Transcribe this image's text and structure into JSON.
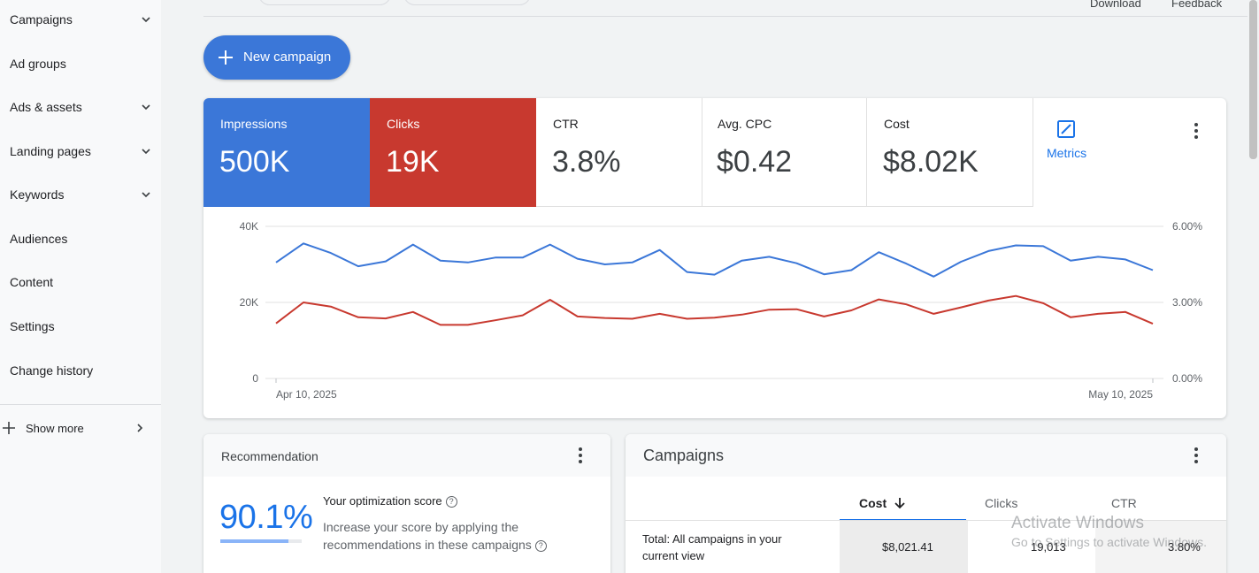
{
  "sidebar": {
    "items": [
      {
        "label": "Campaigns",
        "has_chevron": true
      },
      {
        "label": "Ad groups",
        "has_chevron": false
      },
      {
        "label": "Ads & assets",
        "has_chevron": true
      },
      {
        "label": "Landing pages",
        "has_chevron": true
      },
      {
        "label": "Keywords",
        "has_chevron": true
      },
      {
        "label": "Audiences",
        "has_chevron": false
      },
      {
        "label": "Content",
        "has_chevron": false
      },
      {
        "label": "Settings",
        "has_chevron": false
      },
      {
        "label": "Change history",
        "has_chevron": false
      }
    ],
    "show_more": "Show more"
  },
  "top": {
    "download": "Download",
    "feedback": "Feedback"
  },
  "new_campaign": {
    "label": "New campaign"
  },
  "scorecards": [
    {
      "label": "Impressions",
      "value": "500K",
      "color": "#3b77d8"
    },
    {
      "label": "Clicks",
      "value": "19K",
      "color": "#c8392f"
    },
    {
      "label": "CTR",
      "value": "3.8%"
    },
    {
      "label": "Avg. CPC",
      "value": "$0.42"
    },
    {
      "label": "Cost",
      "value": "$8.02K"
    }
  ],
  "metrics_button": {
    "label": "Metrics",
    "icon": "edit-chart-icon"
  },
  "chart_data": {
    "type": "line",
    "x_start_label": "Apr 10, 2025",
    "x_end_label": "May 10, 2025",
    "left_axis": {
      "ticks": [
        "40K",
        "20K",
        "0"
      ],
      "ylim": [
        0,
        40000
      ]
    },
    "right_axis": {
      "ticks": [
        "6.00%",
        "3.00%",
        "0.00%"
      ],
      "ylim": [
        0,
        6
      ]
    },
    "grid": true,
    "series": [
      {
        "name": "Impressions",
        "color": "#3b77d8",
        "axis": "left",
        "values": [
          30500,
          35500,
          33000,
          29500,
          30800,
          35200,
          31000,
          30500,
          31800,
          31800,
          35200,
          31500,
          30000,
          30500,
          33800,
          28000,
          27300,
          31000,
          32000,
          30300,
          27400,
          28500,
          33200,
          30200,
          26800,
          30700,
          33500,
          35000,
          34800,
          31000,
          32000,
          31300,
          28500
        ]
      },
      {
        "name": "Clicks",
        "color": "#c8392f",
        "axis": "left",
        "values": [
          14500,
          20000,
          18900,
          16100,
          15800,
          17500,
          14100,
          14100,
          15300,
          16600,
          20700,
          16300,
          15900,
          15700,
          17000,
          15700,
          16000,
          16800,
          18100,
          18200,
          16300,
          17900,
          20800,
          19500,
          17000,
          18700,
          20500,
          21700,
          19800,
          16100,
          17000,
          17500,
          14400
        ]
      }
    ]
  },
  "recommendation": {
    "title": "Recommendation",
    "score": "90.1%",
    "score_fraction": 0.901,
    "opt_label": "Your optimization score",
    "description": "Increase your score by applying the recommendations in these campaigns"
  },
  "campaigns": {
    "title": "Campaigns",
    "columns": [
      {
        "label": "Cost",
        "sorted": true
      },
      {
        "label": "Clicks",
        "sorted": false
      },
      {
        "label": "CTR",
        "sorted": false
      }
    ],
    "total_row": {
      "label": "Total: All campaigns in your current view",
      "cost": "$8,021.41",
      "clicks": "19,013",
      "ctr": "3.80%"
    }
  },
  "watermark": {
    "title": "Activate Windows",
    "subtitle": "Go to Settings to activate Windows."
  }
}
